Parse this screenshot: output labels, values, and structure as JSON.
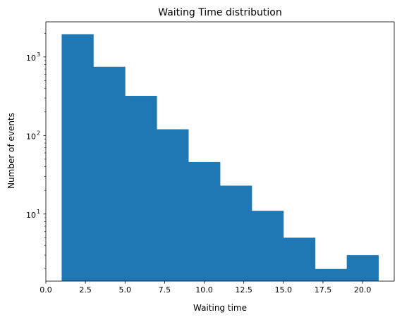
{
  "chart_data": {
    "type": "bar",
    "title": "Waiting Time distribution",
    "xlabel": "Waiting time",
    "ylabel": "Number of events",
    "bin_edges": [
      1.0,
      3.0,
      5.0,
      7.0,
      9.0,
      11.0,
      13.0,
      15.0,
      17.0,
      19.0,
      21.0
    ],
    "values": [
      1950,
      750,
      320,
      120,
      46,
      23,
      11,
      5,
      2,
      3
    ],
    "xlim": [
      0.0,
      22.0
    ],
    "ylim": [
      1.4,
      2800
    ],
    "yscale": "log",
    "xticks": [
      0.0,
      2.5,
      5.0,
      7.5,
      10.0,
      12.5,
      15.0,
      17.5,
      20.0
    ],
    "xtick_labels": [
      "0.0",
      "2.5",
      "5.0",
      "7.5",
      "10.0",
      "12.5",
      "15.0",
      "17.5",
      "20.0"
    ],
    "ytick_labels": [
      {
        "base": "10",
        "exp": "1"
      },
      {
        "base": "10",
        "exp": "2"
      },
      {
        "base": "10",
        "exp": "3"
      }
    ],
    "bar_color": "#1f77b4",
    "grid": false,
    "legend": "none"
  }
}
